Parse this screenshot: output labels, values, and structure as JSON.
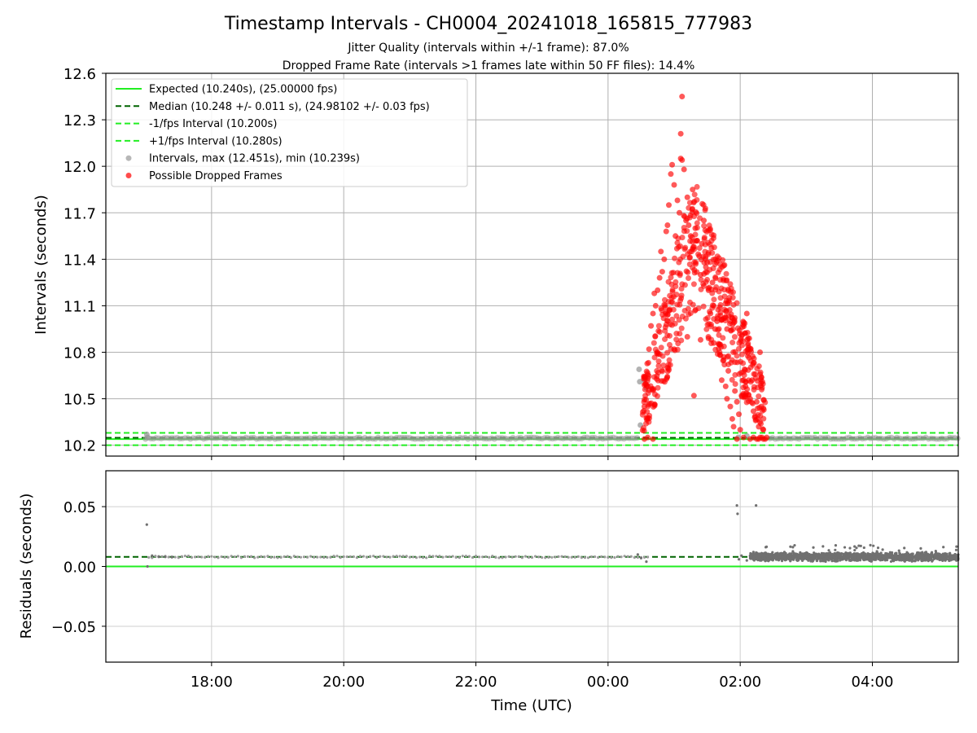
{
  "figure": {
    "title": "Timestamp Intervals - CH0004_20241018_165815_777983",
    "subtitle_1": "Jitter Quality (intervals within +/-1 frame): 87.0%",
    "subtitle_2": "Dropped Frame Rate (intervals >1 frames late within 50 FF files): 14.4%"
  },
  "colors": {
    "expected": "#22ee22",
    "median": "#006400",
    "fps_bounds": "#22ee22",
    "intervals": "#999999",
    "dropped": "#ff0000",
    "residual_points": "#707070",
    "grid": "#b0b0b0"
  },
  "chart_data": [
    {
      "type": "scatter",
      "ylabel": "Intervals (seconds)",
      "x_axis": "hours since 00:00 UTC (time of day)",
      "xlim": [
        -7.6,
        5.3
      ],
      "ylim": [
        10.13,
        12.6
      ],
      "yticks": [
        10.2,
        10.5,
        10.8,
        11.1,
        11.4,
        11.7,
        12.0,
        12.3,
        12.6
      ],
      "ytick_labels": [
        "10.2",
        "10.5",
        "10.8",
        "11.1",
        "11.4",
        "11.7",
        "12.0",
        "12.3",
        "12.6"
      ],
      "grid": true,
      "legend_position": "upper-left",
      "legend": [
        {
          "label": "Expected (10.240s), (25.00000 fps)",
          "style": "solid",
          "color": "#22ee22"
        },
        {
          "label": "Median (10.248 +/- 0.011 s), (24.98102 +/- 0.03 fps)",
          "style": "dashed",
          "color": "#006400"
        },
        {
          "label": "-1/fps Interval (10.200s)",
          "style": "dashed",
          "color": "#22ee22"
        },
        {
          "label": "+1/fps Interval (10.280s)",
          "style": "dashed",
          "color": "#22ee22"
        },
        {
          "label": "Intervals, max (12.451s), min (10.239s)",
          "style": "marker",
          "color": "#999999"
        },
        {
          "label": "Possible Dropped Frames",
          "style": "marker",
          "color": "#ff0000"
        }
      ],
      "reference_lines": {
        "expected": 10.24,
        "median": 10.248,
        "minus_1_fps": 10.2,
        "plus_1_fps": 10.28
      },
      "baseline_segments": [
        [
          -7.0,
          0.45
        ],
        [
          2.45,
          5.3
        ]
      ],
      "series": [
        {
          "name": "Intervals, max (12.451s), min (10.239s)",
          "points": [
            [
              -6.98,
              10.27
            ],
            [
              -6.97,
              10.25
            ],
            [
              0.47,
              10.69
            ],
            [
              0.48,
              10.61
            ],
            [
              0.49,
              10.33
            ],
            [
              0.55,
              10.62
            ],
            [
              0.58,
              10.57
            ],
            [
              1.97,
              10.25
            ],
            [
              2.1,
              10.26
            ]
          ]
        },
        {
          "name": "Possible Dropped Frames",
          "points": [
            [
              0.55,
              10.24
            ],
            [
              0.6,
              10.25
            ],
            [
              0.68,
              10.24
            ],
            [
              1.95,
              10.24
            ],
            [
              2.05,
              10.25
            ],
            [
              2.15,
              10.24
            ],
            [
              2.2,
              10.25
            ],
            [
              2.25,
              10.24
            ],
            [
              2.3,
              10.25
            ],
            [
              2.35,
              10.24
            ],
            [
              2.4,
              10.25
            ],
            [
              2.28,
              10.24
            ],
            [
              2.33,
              10.25
            ],
            [
              2.38,
              10.24
            ],
            [
              0.55,
              10.45
            ],
            [
              0.6,
              10.58
            ],
            [
              0.62,
              10.82
            ],
            [
              0.65,
              10.97
            ],
            [
              0.68,
              11.05
            ],
            [
              0.7,
              11.18
            ],
            [
              0.72,
              11.1
            ],
            [
              0.75,
              11.2
            ],
            [
              0.78,
              11.28
            ],
            [
              0.8,
              11.45
            ],
            [
              0.82,
              11.32
            ],
            [
              0.85,
              11.4
            ],
            [
              0.88,
              11.58
            ],
            [
              0.9,
              11.62
            ],
            [
              0.92,
              11.75
            ],
            [
              0.95,
              11.95
            ],
            [
              0.97,
              12.01
            ],
            [
              1.0,
              11.88
            ],
            [
              1.02,
              11.55
            ],
            [
              1.05,
              11.78
            ],
            [
              1.08,
              11.7
            ],
            [
              1.1,
              12.05
            ],
            [
              1.1,
              12.21
            ],
            [
              1.12,
              12.45
            ],
            [
              1.12,
              12.04
            ],
            [
              1.15,
              11.98
            ],
            [
              1.18,
              11.65
            ],
            [
              1.2,
              11.8
            ],
            [
              1.22,
              11.62
            ],
            [
              1.25,
              11.55
            ],
            [
              1.28,
              11.85
            ],
            [
              1.3,
              11.48
            ],
            [
              1.32,
              11.6
            ],
            [
              1.35,
              11.52
            ],
            [
              1.38,
              11.42
            ],
            [
              1.4,
              11.3
            ],
            [
              1.42,
              11.5
            ],
            [
              1.45,
              11.65
            ],
            [
              1.48,
              11.35
            ],
            [
              1.5,
              11.38
            ],
            [
              1.52,
              11.2
            ],
            [
              1.55,
              11.05
            ],
            [
              1.58,
              11.25
            ],
            [
              1.6,
              11.1
            ],
            [
              1.62,
              10.95
            ],
            [
              1.65,
              11.0
            ],
            [
              1.68,
              10.85
            ],
            [
              1.7,
              10.78
            ],
            [
              1.72,
              10.62
            ],
            [
              1.75,
              10.75
            ],
            [
              1.78,
              10.58
            ],
            [
              1.8,
              10.5
            ],
            [
              1.82,
              10.68
            ],
            [
              1.85,
              10.45
            ],
            [
              1.88,
              10.37
            ],
            [
              1.9,
              10.32
            ],
            [
              1.92,
              10.55
            ],
            [
              1.95,
              10.48
            ],
            [
              1.98,
              10.4
            ],
            [
              2.0,
              10.3
            ],
            [
              2.02,
              10.52
            ],
            [
              2.05,
              10.62
            ],
            [
              2.08,
              10.58
            ],
            [
              2.1,
              11.05
            ],
            [
              2.12,
              10.82
            ],
            [
              2.15,
              10.5
            ],
            [
              2.18,
              10.62
            ],
            [
              2.2,
              10.42
            ],
            [
              2.22,
              10.38
            ],
            [
              2.25,
              10.48
            ],
            [
              2.28,
              10.32
            ],
            [
              2.3,
              10.8
            ],
            [
              2.32,
              10.45
            ],
            [
              2.35,
              10.3
            ],
            [
              1.3,
              10.52
            ],
            [
              0.9,
              10.7
            ],
            [
              1.0,
              10.82
            ],
            [
              1.2,
              10.9
            ],
            [
              1.4,
              10.88
            ],
            [
              1.6,
              10.86
            ],
            [
              1.8,
              10.95
            ]
          ]
        }
      ],
      "dropped_envelope": {
        "x_start": 0.52,
        "x_peak": 1.3,
        "x_end": 2.38,
        "y_low": 10.28,
        "y_peak_centre": 11.35,
        "y_spread": 0.45
      }
    },
    {
      "type": "scatter",
      "xlabel": "Time (UTC)",
      "ylabel": "Residuals (seconds)",
      "xlim": [
        -7.6,
        5.3
      ],
      "ylim": [
        -0.08,
        0.08
      ],
      "yticks": [
        -0.05,
        0.0,
        0.05
      ],
      "ytick_labels": [
        "−0.05",
        "0.00",
        "0.05"
      ],
      "xticks": [
        -6,
        -4,
        -2,
        0,
        2,
        4
      ],
      "xtick_labels": [
        "18:00",
        "20:00",
        "22:00",
        "00:00",
        "02:00",
        "04:00"
      ],
      "grid": true,
      "reference_lines": {
        "zero": 0.0,
        "median": 0.008
      },
      "series": [
        {
          "name": "Residuals",
          "points": [
            [
              -6.98,
              0.035
            ],
            [
              -6.97,
              0.0
            ],
            [
              -6.9,
              0.009
            ],
            [
              -6.8,
              0.008
            ],
            [
              -6.7,
              0.008
            ],
            [
              -6.6,
              0.008
            ],
            [
              0.45,
              0.01
            ],
            [
              0.5,
              0.007
            ],
            [
              0.58,
              0.004
            ],
            [
              1.95,
              0.051
            ],
            [
              1.96,
              0.044
            ],
            [
              1.98,
              0.006
            ],
            [
              2.02,
              0.009
            ],
            [
              2.1,
              0.005
            ],
            [
              2.15,
              0.008
            ],
            [
              2.2,
              0.012
            ],
            [
              2.24,
              0.051
            ],
            [
              2.3,
              0.005
            ]
          ]
        }
      ],
      "dense_band": {
        "x_start": 2.15,
        "x_end": 5.3,
        "y_center": 0.008,
        "y_spread": 0.004,
        "y_max": 0.018
      }
    }
  ]
}
